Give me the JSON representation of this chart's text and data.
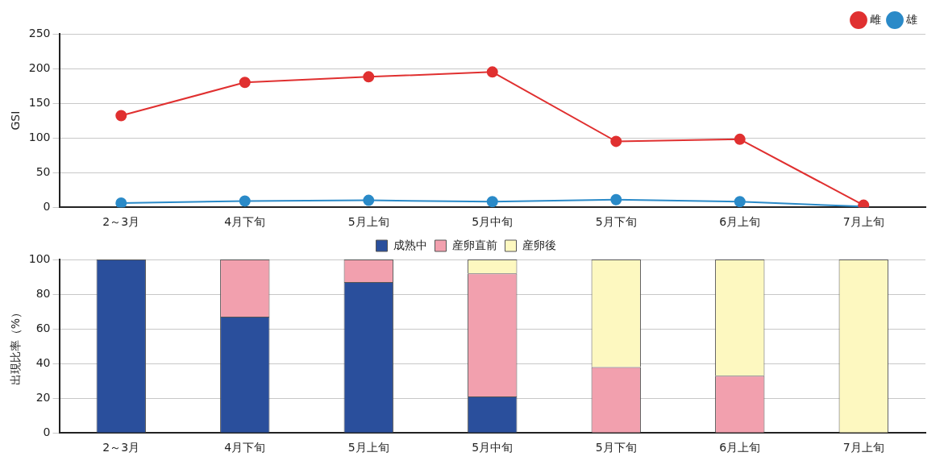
{
  "chart_data": [
    {
      "type": "line",
      "ylabel": "GSI",
      "categories": [
        "2～3月",
        "4月下旬",
        "5月上旬",
        "5月中旬",
        "5月下旬",
        "6月上旬",
        "7月上旬"
      ],
      "series": [
        {
          "name": "雄",
          "color": "#2a8ac8",
          "values": [
            6,
            9,
            10,
            8,
            11,
            8,
            1
          ]
        },
        {
          "name": "雌",
          "color": "#e03030",
          "values": [
            132,
            180,
            188,
            195,
            95,
            98,
            3
          ]
        }
      ],
      "ylim": [
        0,
        250
      ],
      "yticks": [
        0,
        50,
        100,
        150,
        200,
        250
      ],
      "grid": "y",
      "legend": "top right",
      "marker": "circle",
      "line_style": "solid"
    },
    {
      "type": "bar",
      "stacked": true,
      "ylabel": "出現比率（%）",
      "categories": [
        "2～3月",
        "4月下旬",
        "5月上旬",
        "5月中旬",
        "5月下旬",
        "6月上旬",
        "7月上旬"
      ],
      "series": [
        {
          "name": "成熟中",
          "color": "#2a4f9c",
          "values": [
            100,
            67,
            87,
            21,
            0,
            0,
            0
          ]
        },
        {
          "name": "産卵直前",
          "color": "#f2a0ae",
          "values": [
            0,
            33,
            13,
            71,
            38,
            33,
            0
          ]
        },
        {
          "name": "産卵後",
          "color": "#fdf8c0",
          "values": [
            0,
            0,
            0,
            8,
            62,
            67,
            100
          ]
        }
      ],
      "ylim": [
        0,
        100
      ],
      "yticks": [
        0,
        20,
        40,
        60,
        80,
        100
      ],
      "grid": "y",
      "legend": "top"
    }
  ]
}
